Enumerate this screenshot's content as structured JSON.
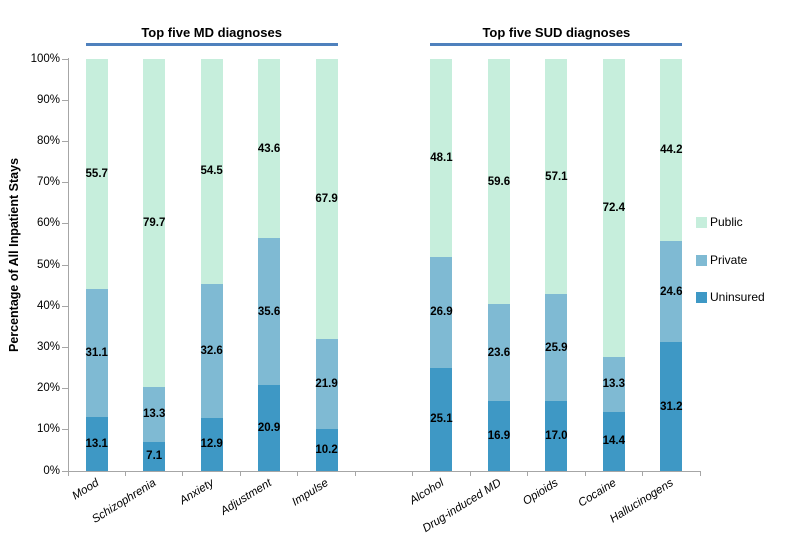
{
  "chart_data": {
    "type": "bar",
    "variant": "100-percent-stacked-column",
    "ylabel": "Percentage of All Inpatient Stays",
    "ylim": [
      0,
      100
    ],
    "y_ticks": [
      "0%",
      "10%",
      "20%",
      "30%",
      "40%",
      "50%",
      "60%",
      "70%",
      "80%",
      "90%",
      "100%"
    ],
    "grid": false,
    "legend_position": "right",
    "colors": {
      "public": "#C6EEDC",
      "private": "#7FBAD3",
      "uninsured": "#3E98C5",
      "title_underline": "#4F81BD",
      "axis": "#A6A6A6"
    },
    "legend": [
      {
        "label": "Public",
        "series": "public"
      },
      {
        "label": "Private",
        "series": "private"
      },
      {
        "label": "Uninsured",
        "series": "uninsured"
      }
    ],
    "groups": [
      {
        "title": "Top five MD diagnoses",
        "categories": [
          "Mood",
          "Schizophrenia",
          "Anxiety",
          "Adjustment",
          "Impulse"
        ],
        "series": [
          {
            "name": "Uninsured",
            "key": "uninsured",
            "values": [
              "13.1",
              "7.1",
              "12.9",
              "20.9",
              "10.2"
            ]
          },
          {
            "name": "Private",
            "key": "private",
            "values": [
              "31.1",
              "13.3",
              "32.6",
              "35.6",
              "21.9"
            ]
          },
          {
            "name": "Public",
            "key": "public",
            "values": [
              "55.7",
              "79.7",
              "54.5",
              "43.6",
              "67.9"
            ]
          }
        ]
      },
      {
        "title": "Top five SUD diagnoses",
        "categories": [
          "Alcohol",
          "Drug-induced MD",
          "Opioids",
          "Cocaine",
          "Hallucinogens"
        ],
        "series": [
          {
            "name": "Uninsured",
            "key": "uninsured",
            "values": [
              "25.1",
              "16.9",
              "17.0",
              "14.4",
              "31.2"
            ]
          },
          {
            "name": "Private",
            "key": "private",
            "values": [
              "26.9",
              "23.6",
              "25.9",
              "13.3",
              "24.6"
            ]
          },
          {
            "name": "Public",
            "key": "public",
            "values": [
              "48.1",
              "59.6",
              "57.1",
              "72.4",
              "44.2"
            ]
          }
        ]
      }
    ]
  }
}
